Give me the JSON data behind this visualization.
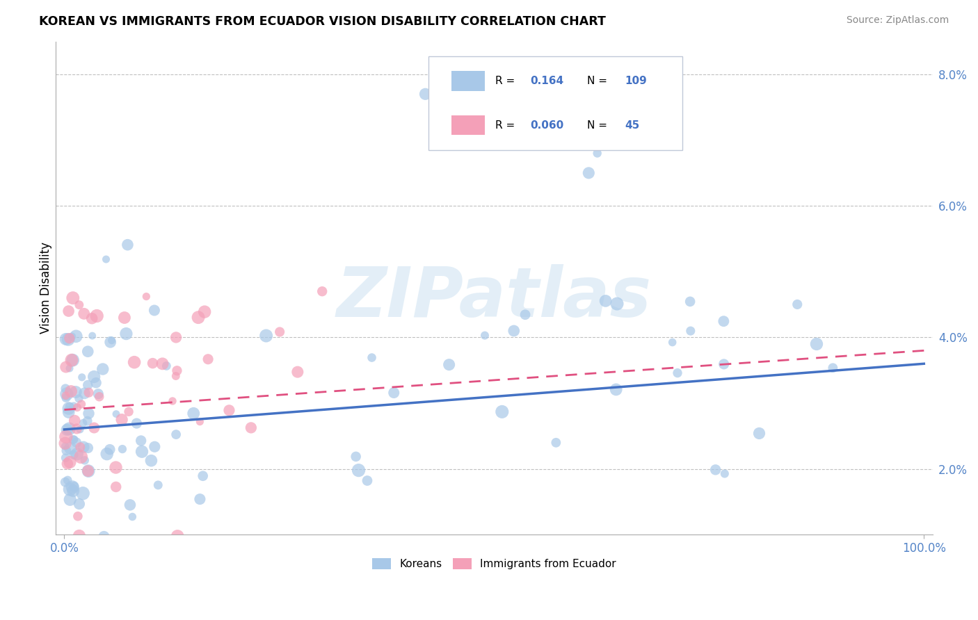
{
  "title": "KOREAN VS IMMIGRANTS FROM ECUADOR VISION DISABILITY CORRELATION CHART",
  "source": "Source: ZipAtlas.com",
  "ylabel": "Vision Disability",
  "watermark_text": "ZIPatlas",
  "korean_R": 0.164,
  "korean_N": 109,
  "ecuador_R": 0.06,
  "ecuador_N": 45,
  "korean_color": "#a8c8e8",
  "ecuador_color": "#f4a0b8",
  "korean_line_color": "#4472c4",
  "ecuador_line_color": "#e05080",
  "background_color": "#ffffff",
  "xlim": [
    0.0,
    1.0
  ],
  "ylim": [
    0.01,
    0.085
  ],
  "y_ticks": [
    0.02,
    0.04,
    0.06,
    0.08
  ],
  "y_tick_labels": [
    "2.0%",
    "4.0%",
    "6.0%",
    "8.0%"
  ],
  "korean_line_x0": 0.0,
  "korean_line_y0": 0.026,
  "korean_line_x1": 1.0,
  "korean_line_y1": 0.036,
  "ecuador_line_x0": 0.0,
  "ecuador_line_y0": 0.029,
  "ecuador_line_x1": 0.35,
  "ecuador_line_y1": 0.034
}
